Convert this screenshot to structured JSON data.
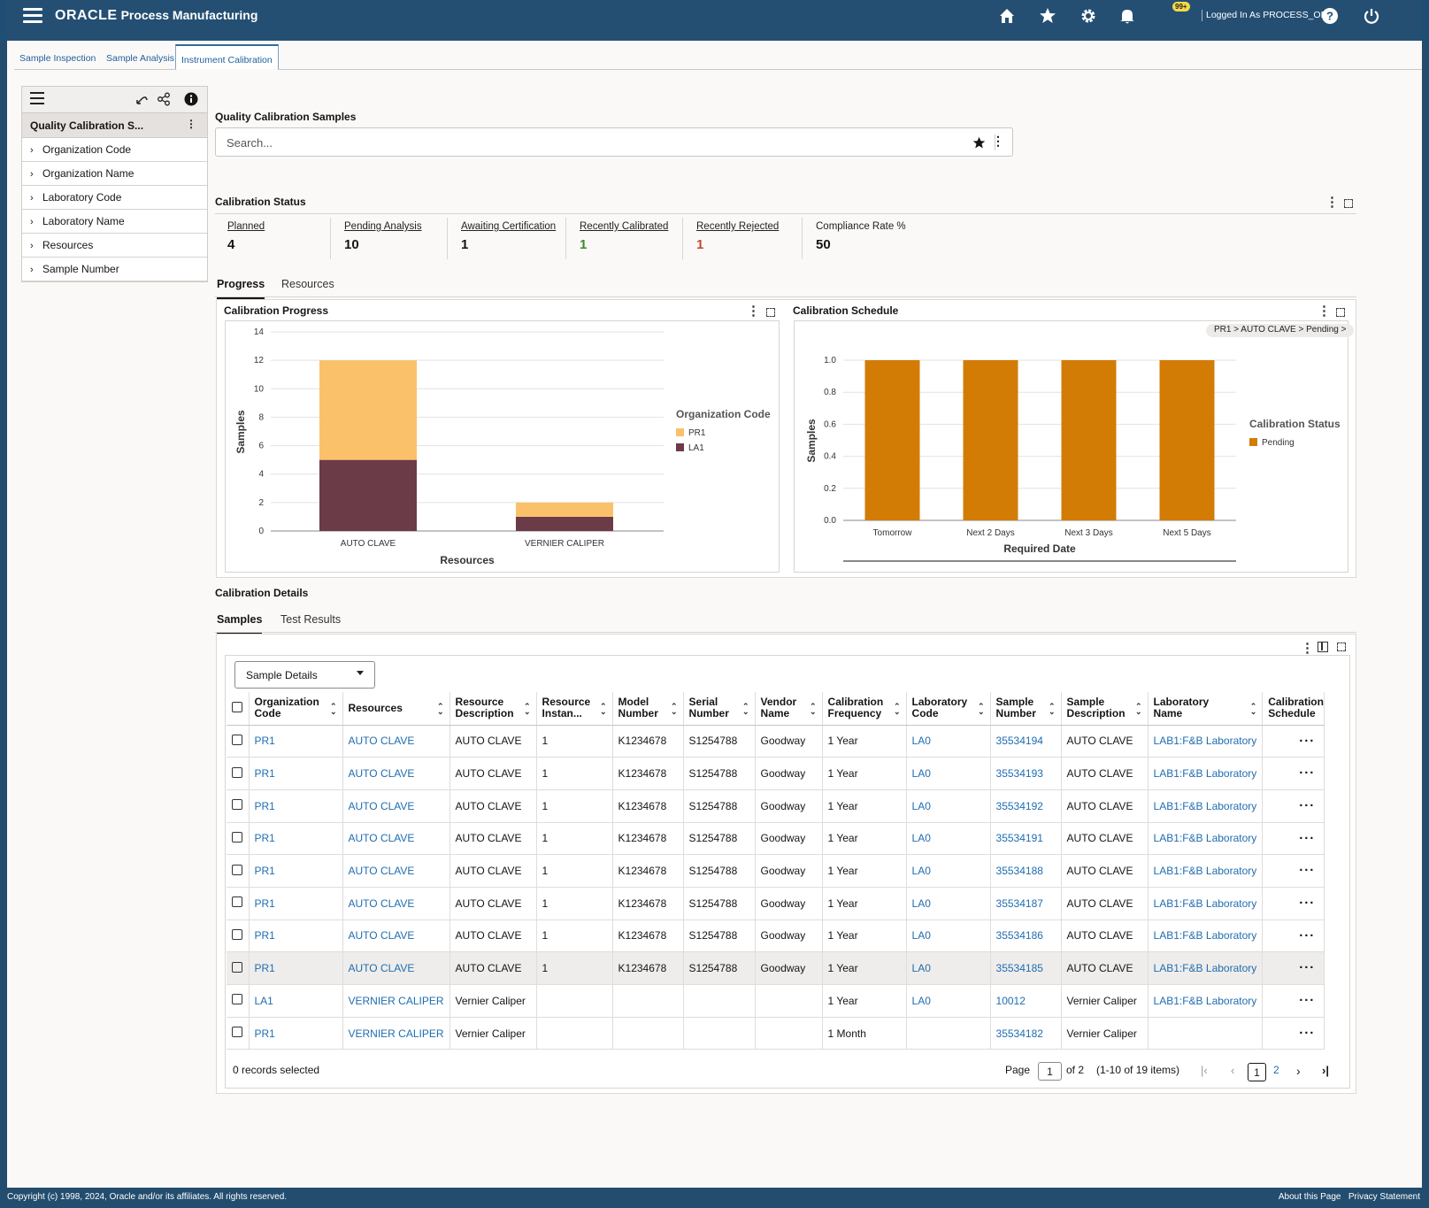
{
  "header": {
    "brand": "ORACLE",
    "product": "Process Manufacturing",
    "notifications_badge": "99+",
    "logged_in": "Logged In As PROCESS_OPS"
  },
  "tabs": [
    "Sample Inspection",
    "Sample Analysis",
    "Instrument Calibration"
  ],
  "sidebar": {
    "title": "Quality Calibration S...",
    "items": [
      "Organization Code",
      "Organization Name",
      "Laboratory Code",
      "Laboratory Name",
      "Resources",
      "Sample Number"
    ]
  },
  "main": {
    "title": "Quality Calibration Samples",
    "search_placeholder": "Search..."
  },
  "status": {
    "title": "Calibration Status",
    "kpis": [
      {
        "label": "Planned",
        "value": "4",
        "color": "#161513"
      },
      {
        "label": "Pending Analysis",
        "value": "10",
        "color": "#161513"
      },
      {
        "label": "Awaiting Certification",
        "value": "1",
        "color": "#161513"
      },
      {
        "label": "Recently Calibrated",
        "value": "1",
        "color": "#3c8a2e"
      },
      {
        "label": "Recently Rejected",
        "value": "1",
        "color": "#c74634"
      },
      {
        "label": "Compliance Rate %",
        "value": "50",
        "color": "#161513"
      }
    ]
  },
  "subtabs": [
    "Progress",
    "Resources"
  ],
  "chart_data": [
    {
      "type": "bar",
      "stacked": true,
      "title": "Calibration Progress",
      "xlabel": "Resources",
      "ylabel": "Samples",
      "ylim": [
        0,
        14
      ],
      "yticks": [
        0,
        2,
        4,
        6,
        8,
        10,
        12,
        14
      ],
      "categories": [
        "AUTO CLAVE",
        "VERNIER CALIPER"
      ],
      "legend_title": "Organization Code",
      "series": [
        {
          "name": "LA1",
          "values": [
            5,
            1
          ],
          "color": "#6b3b47"
        },
        {
          "name": "PR1",
          "values": [
            7,
            1
          ],
          "color": "#fbc16a"
        }
      ]
    },
    {
      "type": "bar",
      "title": "Calibration Schedule",
      "xlabel": "Required Date",
      "ylabel": "Samples",
      "ylim": [
        0,
        1
      ],
      "yticks": [
        "0.0",
        "0.2",
        "0.4",
        "0.6",
        "0.8",
        "1.0"
      ],
      "breadcrumb": "PR1 > AUTO CLAVE > Pending >",
      "categories": [
        "Tomorrow",
        "Next 2 Days",
        "Next 3 Days",
        "Next 5 Days"
      ],
      "legend_title": "Calibration Status",
      "series": [
        {
          "name": "Pending",
          "values": [
            1,
            1,
            1,
            1
          ],
          "color": "#d27c06"
        }
      ]
    }
  ],
  "details": {
    "title": "Calibration Details",
    "tabs": [
      "Samples",
      "Test Results"
    ],
    "view_select": "Sample Details",
    "columns": [
      "Organization Code",
      "Resources",
      "Resource Description",
      "Resource Instan...",
      "Model Number",
      "Serial Number",
      "Vendor Name",
      "Calibration Frequency",
      "Laboratory Code",
      "Sample Number",
      "Sample Description",
      "Laboratory Name",
      "Calibration Schedule"
    ],
    "rows": [
      [
        "PR1",
        "AUTO CLAVE",
        "AUTO CLAVE",
        "1",
        "K1234678",
        "S1254788",
        "Goodway",
        "1 Year",
        "LA0",
        "35534194",
        "AUTO CLAVE",
        "LAB1:F&B Laboratory",
        ""
      ],
      [
        "PR1",
        "AUTO CLAVE",
        "AUTO CLAVE",
        "1",
        "K1234678",
        "S1254788",
        "Goodway",
        "1 Year",
        "LA0",
        "35534193",
        "AUTO CLAVE",
        "LAB1:F&B Laboratory",
        ""
      ],
      [
        "PR1",
        "AUTO CLAVE",
        "AUTO CLAVE",
        "1",
        "K1234678",
        "S1254788",
        "Goodway",
        "1 Year",
        "LA0",
        "35534192",
        "AUTO CLAVE",
        "LAB1:F&B Laboratory",
        ""
      ],
      [
        "PR1",
        "AUTO CLAVE",
        "AUTO CLAVE",
        "1",
        "K1234678",
        "S1254788",
        "Goodway",
        "1 Year",
        "LA0",
        "35534191",
        "AUTO CLAVE",
        "LAB1:F&B Laboratory",
        ""
      ],
      [
        "PR1",
        "AUTO CLAVE",
        "AUTO CLAVE",
        "1",
        "K1234678",
        "S1254788",
        "Goodway",
        "1 Year",
        "LA0",
        "35534188",
        "AUTO CLAVE",
        "LAB1:F&B Laboratory",
        ""
      ],
      [
        "PR1",
        "AUTO CLAVE",
        "AUTO CLAVE",
        "1",
        "K1234678",
        "S1254788",
        "Goodway",
        "1 Year",
        "LA0",
        "35534187",
        "AUTO CLAVE",
        "LAB1:F&B Laboratory",
        ""
      ],
      [
        "PR1",
        "AUTO CLAVE",
        "AUTO CLAVE",
        "1",
        "K1234678",
        "S1254788",
        "Goodway",
        "1 Year",
        "LA0",
        "35534186",
        "AUTO CLAVE",
        "LAB1:F&B Laboratory",
        ""
      ],
      [
        "PR1",
        "AUTO CLAVE",
        "AUTO CLAVE",
        "1",
        "K1234678",
        "S1254788",
        "Goodway",
        "1 Year",
        "LA0",
        "35534185",
        "AUTO CLAVE",
        "LAB1:F&B Laboratory",
        ""
      ],
      [
        "LA1",
        "VERNIER CALIPER",
        "Vernier Caliper",
        "",
        "",
        "",
        "",
        "1 Year",
        "LA0",
        "10012",
        "Vernier Caliper",
        "LAB1:F&B Laboratory",
        ""
      ],
      [
        "PR1",
        "VERNIER CALIPER",
        "Vernier Caliper",
        "",
        "",
        "",
        "",
        "1 Month",
        "",
        "35534182",
        "Vernier Caliper",
        "",
        ""
      ]
    ],
    "records_selected": "0 records selected",
    "pager": {
      "page_label": "Page",
      "page": "1",
      "of": "of 2",
      "range": "(1-10 of 19 items)",
      "pages": [
        "1",
        "2"
      ]
    }
  },
  "footer": {
    "copyright": "Copyright (c) 1998, 2024, Oracle and/or its affiliates. All rights reserved.",
    "about": "About this Page",
    "privacy": "Privacy Statement"
  }
}
